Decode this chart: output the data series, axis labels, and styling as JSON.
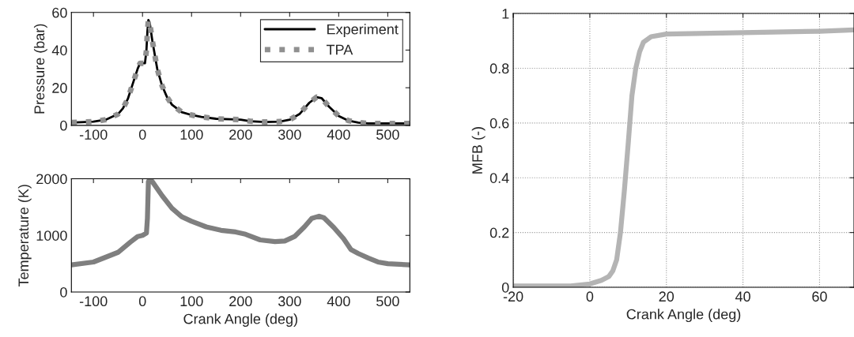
{
  "chart_data": [
    {
      "type": "line",
      "ylabel": "Pressure (bar)",
      "xlim": [
        -145,
        545
      ],
      "ylim": [
        0,
        60
      ],
      "xticks": [
        -100,
        0,
        100,
        200,
        300,
        400,
        500
      ],
      "yticks": [
        0,
        20,
        40,
        60
      ],
      "grid": false,
      "legend": "top right",
      "series": [
        {
          "name": "Experiment",
          "color": "#000000",
          "line_style": "solid",
          "x": [
            -145,
            -100,
            -75,
            -50,
            -40,
            -30,
            -20,
            -10,
            -5,
            0,
            5,
            8,
            10,
            12,
            15,
            20,
            30,
            40,
            50,
            60,
            80,
            100,
            120,
            150,
            180,
            200,
            220,
            250,
            280,
            300,
            320,
            340,
            355,
            365,
            380,
            400,
            420,
            440,
            460,
            500,
            545
          ],
          "values": [
            1.5,
            2,
            3,
            6,
            9,
            14,
            22,
            30,
            33,
            33,
            33,
            40,
            50,
            56,
            54,
            45,
            30,
            21,
            15,
            11,
            7,
            5.5,
            4.5,
            3.5,
            3.2,
            3,
            2.2,
            1.8,
            2,
            3,
            6,
            12,
            15,
            14.5,
            10,
            5,
            2.5,
            1.5,
            1,
            1,
            1
          ]
        },
        {
          "name": "TPA",
          "color": "#909090",
          "line_style": "dotted",
          "x": [
            -145,
            -100,
            -75,
            -50,
            -40,
            -30,
            -20,
            -10,
            -5,
            0,
            5,
            8,
            10,
            12,
            15,
            20,
            30,
            40,
            50,
            60,
            80,
            100,
            120,
            150,
            180,
            200,
            220,
            250,
            280,
            300,
            320,
            340,
            355,
            365,
            380,
            400,
            420,
            440,
            460,
            500,
            545
          ],
          "values": [
            1.5,
            2,
            3,
            6,
            9,
            14,
            22,
            30,
            33,
            33,
            33,
            40,
            50,
            56,
            54,
            45,
            30,
            21,
            15,
            11,
            7,
            5.5,
            4.5,
            3.5,
            3.2,
            3,
            2.2,
            1.8,
            2,
            3,
            6,
            12,
            15,
            14.5,
            10,
            5,
            2.5,
            1.5,
            1,
            1,
            1
          ]
        }
      ]
    },
    {
      "type": "line",
      "xlabel": "Crank Angle (deg)",
      "ylabel": "Temperature (K)",
      "xlim": [
        -145,
        545
      ],
      "ylim": [
        0,
        2000
      ],
      "xticks": [
        -100,
        0,
        100,
        200,
        300,
        400,
        500
      ],
      "yticks": [
        0,
        1000,
        2000
      ],
      "grid": false,
      "series": [
        {
          "color": "#7f7f7f",
          "x": [
            -145,
            -100,
            -50,
            -25,
            -10,
            0,
            8,
            10,
            12,
            15,
            20,
            40,
            60,
            80,
            100,
            130,
            160,
            190,
            210,
            240,
            270,
            290,
            310,
            330,
            345,
            360,
            370,
            390,
            410,
            425,
            440,
            460,
            480,
            500,
            545
          ],
          "values": [
            480,
            530,
            700,
            880,
            980,
            1000,
            1040,
            1300,
            1950,
            2000,
            1950,
            1700,
            1480,
            1330,
            1250,
            1150,
            1090,
            1060,
            1020,
            920,
            890,
            900,
            980,
            1150,
            1300,
            1340,
            1310,
            1140,
            940,
            750,
            680,
            600,
            530,
            500,
            480
          ]
        }
      ]
    },
    {
      "type": "line",
      "xlabel": "Crank Angle (deg)",
      "ylabel": "MFB (-)",
      "xlim": [
        -20,
        69
      ],
      "ylim": [
        0,
        1
      ],
      "xticks": [
        -20,
        0,
        20,
        40,
        60
      ],
      "yticks": [
        0,
        0.2,
        0.4,
        0.6,
        0.8,
        1
      ],
      "grid": true,
      "series": [
        {
          "color": "#b4b4b4",
          "x": [
            -20,
            -5,
            0,
            3,
            5,
            6,
            7,
            8,
            9,
            10,
            11,
            12,
            13,
            14,
            16,
            20,
            40,
            60,
            69
          ],
          "values": [
            0.005,
            0.005,
            0.012,
            0.025,
            0.04,
            0.06,
            0.1,
            0.2,
            0.35,
            0.52,
            0.7,
            0.8,
            0.86,
            0.895,
            0.915,
            0.925,
            0.93,
            0.935,
            0.94
          ]
        }
      ]
    }
  ]
}
